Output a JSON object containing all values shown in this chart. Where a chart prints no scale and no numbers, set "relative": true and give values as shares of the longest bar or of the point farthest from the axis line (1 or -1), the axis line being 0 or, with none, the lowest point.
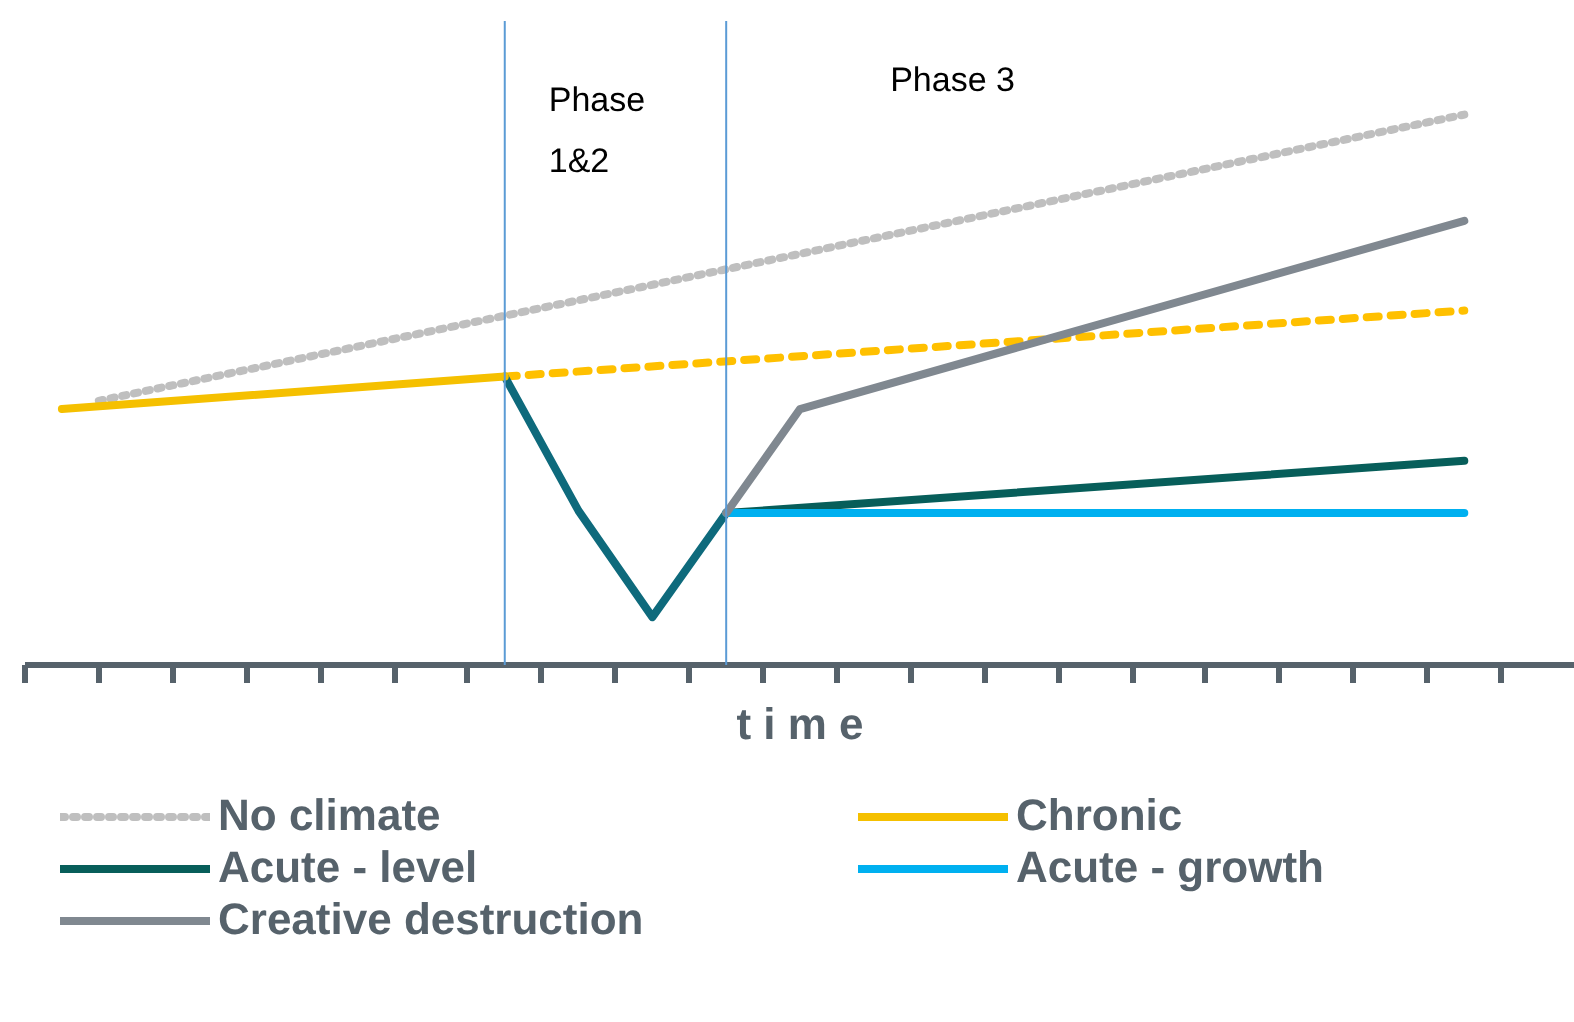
{
  "chart_data": {
    "type": "line",
    "relative": true,
    "xlabel": "t i m e",
    "legend": "bottom",
    "categories": [
      null,
      null,
      null,
      null,
      null,
      null,
      null,
      null,
      null,
      null,
      null,
      null,
      null,
      null,
      null,
      null,
      null,
      null,
      null,
      null,
      null,
      null,
      null,
      null,
      null,
      null,
      null,
      null,
      null,
      null,
      null,
      null,
      null,
      null,
      null,
      null,
      null,
      null,
      null,
      null,
      null,
      null
    ],
    "series": [
      {
        "name": "No climate",
        "color": "#bfbfbf",
        "line_style": "dotted",
        "values": [
          null,
          null,
          0.48,
          null,
          null,
          null,
          null,
          null,
          null,
          null,
          null,
          null,
          null,
          null,
          null,
          null,
          null,
          null,
          null,
          null,
          null,
          null,
          null,
          null,
          null,
          null,
          null,
          null,
          null,
          null,
          null,
          null,
          null,
          null,
          null,
          null,
          null,
          null,
          null,
          1.0,
          null,
          null
        ]
      },
      {
        "color": "#ffc000",
        "line_style": "dashed",
        "values": [
          null,
          null,
          null,
          null,
          null,
          null,
          null,
          null,
          null,
          null,
          null,
          null,
          null,
          0.524,
          null,
          null,
          null,
          null,
          null,
          null,
          null,
          null,
          null,
          null,
          null,
          null,
          null,
          null,
          null,
          null,
          null,
          null,
          null,
          null,
          null,
          null,
          null,
          null,
          null,
          0.644,
          null,
          null
        ]
      },
      {
        "color": "#0e6a7c",
        "line_style": "solid",
        "values": [
          null,
          null,
          null,
          null,
          null,
          null,
          null,
          null,
          null,
          null,
          null,
          null,
          null,
          0.524,
          null,
          0.28,
          null,
          0.087,
          null,
          0.276,
          null,
          null,
          null,
          null,
          null,
          null,
          null,
          null,
          null,
          null,
          null,
          null,
          null,
          null,
          null,
          null,
          null,
          null,
          null,
          null,
          null,
          null
        ]
      },
      {
        "name": "Chronic",
        "color": "#f5c000",
        "line_style": "solid",
        "values": [
          null,
          0.465,
          null,
          null,
          null,
          null,
          null,
          null,
          null,
          null,
          null,
          null,
          null,
          0.524,
          null,
          null,
          null,
          null,
          null,
          null,
          null,
          null,
          null,
          null,
          null,
          null,
          null,
          null,
          null,
          null,
          null,
          null,
          null,
          null,
          null,
          null,
          null,
          null,
          null,
          null,
          null,
          null
        ]
      },
      {
        "name": "Acute - level",
        "color": "#075e5a",
        "line_style": "solid",
        "values": [
          null,
          null,
          null,
          null,
          null,
          null,
          null,
          null,
          null,
          null,
          null,
          null,
          null,
          null,
          null,
          null,
          null,
          null,
          null,
          0.276,
          null,
          null,
          null,
          null,
          null,
          null,
          null,
          null,
          null,
          null,
          null,
          null,
          null,
          null,
          null,
          null,
          null,
          null,
          null,
          0.371,
          null,
          null
        ]
      },
      {
        "name": "Acute - growth",
        "color": "#00b0f0",
        "line_style": "solid",
        "values": [
          null,
          null,
          null,
          null,
          null,
          null,
          null,
          null,
          null,
          null,
          null,
          null,
          null,
          null,
          null,
          null,
          null,
          null,
          null,
          0.276,
          null,
          null,
          null,
          null,
          null,
          null,
          null,
          null,
          null,
          null,
          null,
          null,
          null,
          null,
          null,
          null,
          null,
          null,
          null,
          0.276,
          null,
          null
        ]
      },
      {
        "name": "Creative destruction",
        "color": "#808890",
        "line_style": "solid",
        "values": [
          null,
          null,
          null,
          null,
          null,
          null,
          null,
          null,
          null,
          null,
          null,
          null,
          null,
          null,
          null,
          null,
          null,
          null,
          null,
          0.276,
          null,
          0.465,
          null,
          null,
          null,
          null,
          null,
          null,
          null,
          null,
          null,
          null,
          null,
          null,
          null,
          null,
          null,
          null,
          null,
          0.807,
          null,
          null
        ]
      }
    ],
    "annotations": [
      "Phase\n1&2",
      "Phase 3"
    ]
  }
}
